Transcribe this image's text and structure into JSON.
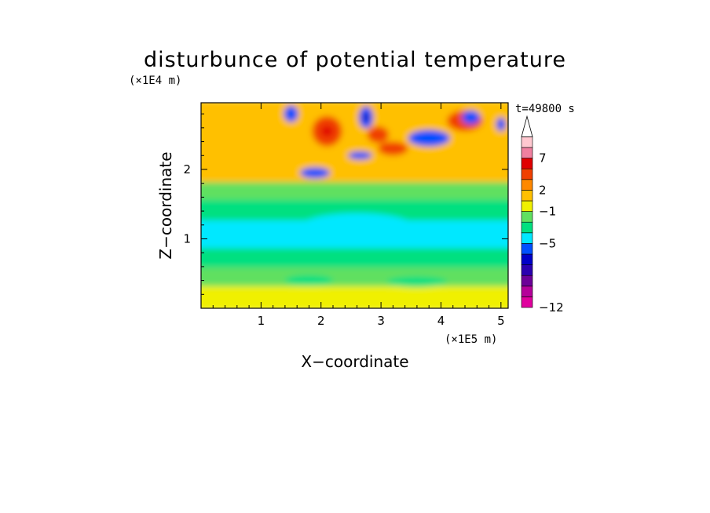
{
  "chart_data": {
    "type": "heatmap",
    "title": "disturbunce of potential temperature",
    "xlabel": "X−coordinate",
    "ylabel": "Z−coordinate",
    "x_unit": "(×1E5 m)",
    "y_unit": "(×1E4 m)",
    "time_label": "t=49800 s",
    "xlim": [
      0,
      5.12
    ],
    "ylim": [
      0,
      2.96
    ],
    "x_ticks": [
      1,
      2,
      3,
      4,
      5
    ],
    "y_ticks": [
      1,
      2
    ],
    "x_tick_labels": [
      "1",
      "2",
      "3",
      "4",
      "5"
    ],
    "y_tick_labels": [
      "1",
      "2"
    ],
    "colorbar": {
      "colors": [
        "#e0009e",
        "#b5009a",
        "#6c0098",
        "#2a00b0",
        "#0000c8",
        "#0050ff",
        "#00e8ff",
        "#00e080",
        "#60e060",
        "#f0f000",
        "#ffc000",
        "#ff8800",
        "#f04000",
        "#e00000",
        "#f080a0",
        "#ffc8d0"
      ],
      "labels": [
        {
          "text": "−12",
          "level": 0
        },
        {
          "text": "−5",
          "level": 6
        },
        {
          "text": "−1",
          "level": 9
        },
        {
          "text": "2",
          "level": 11
        },
        {
          "text": "7",
          "level": 14
        }
      ],
      "extend": "max"
    },
    "regions": [
      {
        "z": [
          0.0,
          0.35
        ],
        "x": [
          0.0,
          5.12
        ],
        "level": 9
      },
      {
        "z": [
          0.35,
          0.62
        ],
        "x": [
          0.0,
          5.12
        ],
        "level": 8
      },
      {
        "z": [
          0.62,
          0.9
        ],
        "x": [
          0.0,
          5.12
        ],
        "level": 7
      },
      {
        "z": [
          0.9,
          1.3
        ],
        "x": [
          0.0,
          5.12
        ],
        "level": 6
      },
      {
        "z": [
          1.3,
          1.6
        ],
        "x": [
          0.0,
          5.12
        ],
        "level": 7
      },
      {
        "z": [
          1.6,
          1.85
        ],
        "x": [
          0.0,
          5.12
        ],
        "level": 8
      },
      {
        "z": [
          1.85,
          2.2
        ],
        "x": [
          0.0,
          5.12
        ],
        "level": 10
      },
      {
        "z": [
          2.2,
          2.96
        ],
        "x": [
          0.0,
          5.12
        ],
        "level": 10
      }
    ],
    "blobs": [
      {
        "cx": 1.5,
        "cz": 2.8,
        "rx": 0.12,
        "rz": 0.12,
        "level": 5
      },
      {
        "cx": 2.1,
        "cz": 2.55,
        "rx": 0.25,
        "rz": 0.22,
        "level": 12
      },
      {
        "cx": 2.1,
        "cz": 2.55,
        "rx": 0.1,
        "rz": 0.08,
        "level": 13
      },
      {
        "cx": 1.9,
        "cz": 1.95,
        "rx": 0.25,
        "rz": 0.08,
        "level": 5
      },
      {
        "cx": 2.75,
        "cz": 2.75,
        "rx": 0.12,
        "rz": 0.16,
        "level": 5
      },
      {
        "cx": 2.75,
        "cz": 2.75,
        "rx": 0.05,
        "rz": 0.06,
        "level": 3
      },
      {
        "cx": 2.65,
        "cz": 2.2,
        "rx": 0.2,
        "rz": 0.06,
        "level": 5
      },
      {
        "cx": 2.95,
        "cz": 2.5,
        "rx": 0.18,
        "rz": 0.12,
        "level": 12
      },
      {
        "cx": 3.2,
        "cz": 2.3,
        "rx": 0.25,
        "rz": 0.1,
        "level": 12
      },
      {
        "cx": 3.8,
        "cz": 2.45,
        "rx": 0.35,
        "rz": 0.12,
        "level": 5
      },
      {
        "cx": 4.4,
        "cz": 2.7,
        "rx": 0.3,
        "rz": 0.15,
        "level": 12
      },
      {
        "cx": 4.5,
        "cz": 2.75,
        "rx": 0.15,
        "rz": 0.1,
        "level": 5
      },
      {
        "cx": 5.0,
        "cz": 2.65,
        "rx": 0.08,
        "rz": 0.1,
        "level": 5
      },
      {
        "cx": 2.6,
        "cz": 1.15,
        "rx": 1.0,
        "rz": 0.22,
        "level": 6
      },
      {
        "cx": 1.8,
        "cz": 0.4,
        "rx": 0.4,
        "rz": 0.08,
        "level": 7
      },
      {
        "cx": 3.6,
        "cz": 0.38,
        "rx": 0.5,
        "rz": 0.08,
        "level": 7
      }
    ]
  }
}
